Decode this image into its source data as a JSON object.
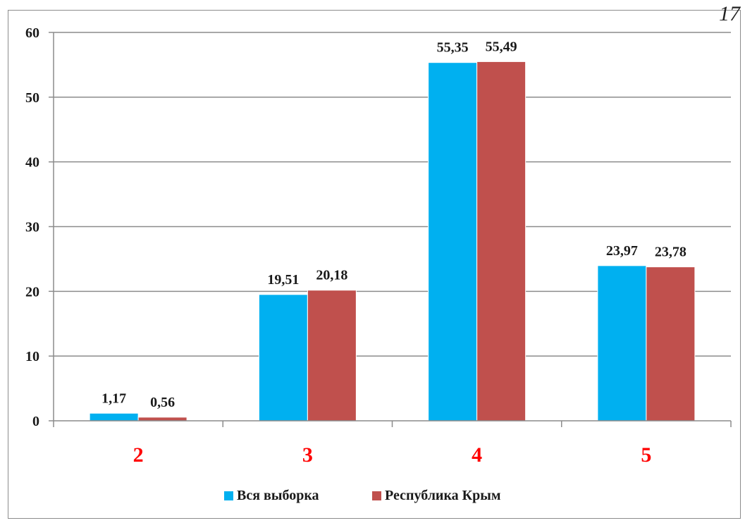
{
  "corner_mark": "17",
  "chart_data": {
    "type": "bar",
    "categories": [
      "2",
      "3",
      "4",
      "5"
    ],
    "series": [
      {
        "name": "Вся выборка",
        "values": [
          1.17,
          19.51,
          55.35,
          23.97
        ],
        "labels": [
          "1,17",
          "19,51",
          "55,35",
          "23,97"
        ],
        "color": "#00b0f0"
      },
      {
        "name": "Республика Крым",
        "values": [
          0.56,
          20.18,
          55.49,
          23.78
        ],
        "labels": [
          "0,56",
          "20,18",
          "55,49",
          "23,78"
        ],
        "color": "#c0504d"
      }
    ],
    "ylim": [
      0,
      60
    ],
    "yticks": [
      "0",
      "10",
      "20",
      "30",
      "40",
      "50",
      "60"
    ],
    "grid": true,
    "legend": "bottom",
    "category_label_color": "#ff0000",
    "title": "",
    "xlabel": "",
    "ylabel": ""
  }
}
